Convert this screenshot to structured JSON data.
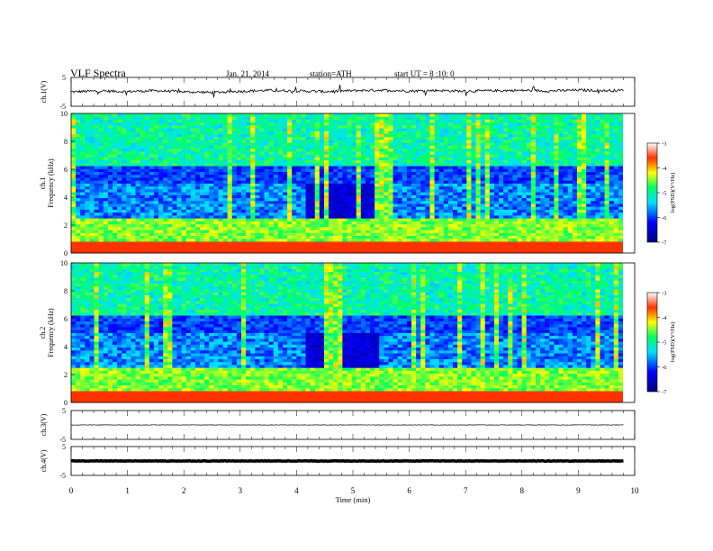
{
  "header": {
    "title": "VLF Spectra",
    "date": "Jan. 21, 2014",
    "station": "station=ATH",
    "start": "start UT =  8 :10: 0"
  },
  "chart_data": [
    {
      "type": "line",
      "panel": "ch1-waveform",
      "ylabel": "ch.1(V)",
      "ylim": [
        -5,
        5
      ],
      "yticks": [
        "5",
        "-5"
      ],
      "x": [
        0,
        0.5,
        1,
        1.5,
        2,
        2.5,
        3,
        3.5,
        4,
        4.5,
        5,
        5.5,
        6,
        6.5,
        7,
        7.5,
        8,
        8.5,
        9,
        9.5,
        9.8
      ],
      "values": [
        0.0,
        0.3,
        0.1,
        0.4,
        0.0,
        -0.2,
        0.2,
        0.5,
        0.3,
        0.1,
        0.4,
        0.6,
        0.3,
        0.5,
        0.2,
        0.4,
        0.5,
        0.3,
        0.6,
        0.4,
        0.5
      ],
      "xlim": [
        0,
        10
      ]
    },
    {
      "type": "heatmap",
      "panel": "ch1-spectrogram",
      "ylabel": "Frequency (kHz)",
      "channel_label": "ch.1",
      "ylim": [
        0,
        10
      ],
      "yticks": [
        "0",
        "2",
        "4",
        "6",
        "8",
        "10"
      ],
      "xlim": [
        0,
        10
      ],
      "colorbar": {
        "label": "log(PSD)(V²/Hz)",
        "range": [
          -7,
          -3
        ],
        "ticks": [
          "-3",
          "-4",
          "-5",
          "-6",
          "-7"
        ]
      }
    },
    {
      "type": "heatmap",
      "panel": "ch2-spectrogram",
      "ylabel": "Frequency (kHz)",
      "channel_label": "ch.2",
      "ylim": [
        0,
        10
      ],
      "yticks": [
        "0",
        "2",
        "4",
        "6",
        "8",
        "10"
      ],
      "xlim": [
        0,
        10
      ],
      "colorbar": {
        "label": "log(PSD)(V²/Hz)",
        "range": [
          -7,
          -3
        ],
        "ticks": [
          "-3",
          "-4",
          "-5",
          "-6",
          "-7"
        ]
      }
    },
    {
      "type": "line",
      "panel": "ch3-waveform",
      "ylabel": "ch.3(V)",
      "ylim": [
        -5,
        5
      ],
      "yticks": [
        "5",
        "-5"
      ],
      "x": [
        0,
        9.8
      ],
      "values": [
        0.0,
        0.0
      ],
      "xlim": [
        0,
        10
      ]
    },
    {
      "type": "line",
      "panel": "ch4-waveform",
      "ylabel": "ch.4(V)",
      "ylim": [
        -5,
        5
      ],
      "yticks": [
        "5",
        "-5"
      ],
      "x": [
        0,
        9.8
      ],
      "values": [
        0.0,
        0.0
      ],
      "xlim": [
        0,
        10
      ]
    }
  ],
  "xaxis": {
    "label": "Time (min)",
    "ticks": [
      "0",
      "1",
      "2",
      "3",
      "4",
      "5",
      "6",
      "7",
      "8",
      "9",
      "10"
    ]
  }
}
